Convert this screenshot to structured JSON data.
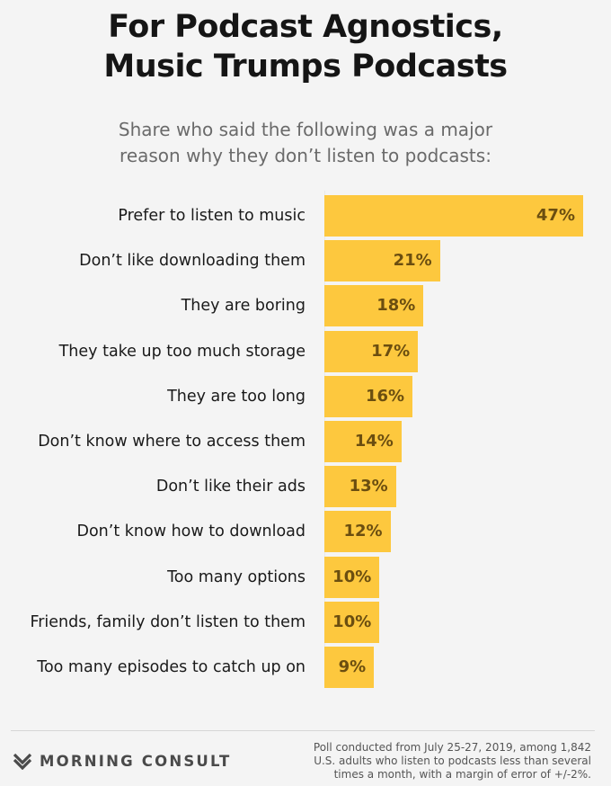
{
  "header": {
    "title_line1": "For Podcast Agnostics,",
    "title_line2": "Music Trumps Podcasts",
    "subtitle_line1": "Share who said the following was a major",
    "subtitle_line2": "reason why they don’t listen to podcasts:"
  },
  "chart_data": {
    "type": "bar",
    "orientation": "horizontal",
    "title": "For Podcast Agnostics, Music Trumps Podcasts",
    "subtitle": "Share who said the following was a major reason why they don’t listen to podcasts:",
    "categories": [
      "Prefer to listen to music",
      "Don’t like downloading them",
      "They are boring",
      "They take up too much storage",
      "They are too long",
      "Don’t know where to access them",
      "Don’t like their ads",
      "Don’t know how to download",
      "Too many options",
      "Friends, family don’t listen to them",
      "Too many episodes to catch up on"
    ],
    "values": [
      47,
      21,
      18,
      17,
      16,
      14,
      13,
      12,
      10,
      10,
      9
    ],
    "value_labels": [
      "47%",
      "21%",
      "18%",
      "17%",
      "16%",
      "14%",
      "13%",
      "12%",
      "10%",
      "10%",
      "9%"
    ],
    "unit": "%",
    "xlim": [
      0,
      47
    ],
    "grid": false,
    "legend": "none",
    "bar_color": "#fdc83e",
    "value_label_color": "#6b4e10"
  },
  "footer": {
    "brand": "MORNING CONSULT",
    "brand_icon": "chevron-down-icon",
    "note_line1": "Poll conducted from July 25-27, 2019, among 1,842",
    "note_line2": "U.S. adults who listen to podcasts less than several",
    "note_line3": "times a month, with a margin of error of +/-2%."
  }
}
